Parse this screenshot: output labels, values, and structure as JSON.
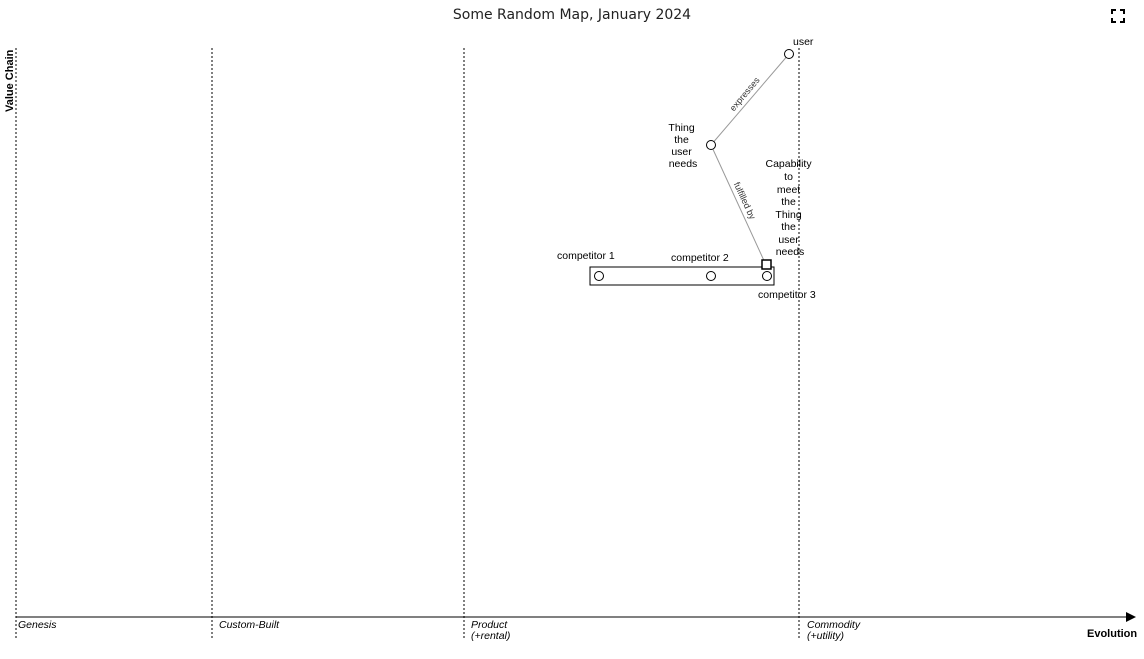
{
  "title": "Some Random Map, January 2024",
  "fullscreen_icon": "fullscreen-icon",
  "axes": {
    "y_label": "Value Chain",
    "x_label": "Evolution"
  },
  "stages": [
    {
      "line1": "Genesis",
      "line2": ""
    },
    {
      "line1": "Custom-Built",
      "line2": ""
    },
    {
      "line1": "Product",
      "line2": "(+rental)"
    },
    {
      "line1": "Commodity",
      "line2": "(+utility)"
    }
  ],
  "components": {
    "user": {
      "label": "user",
      "shape": "circle"
    },
    "thing": {
      "label_lines": [
        "Thing",
        "the",
        "user",
        "needs"
      ],
      "shape": "circle"
    },
    "capability": {
      "label_lines": [
        "Capability",
        "to",
        "meet",
        "the",
        "Thing",
        "the",
        "user",
        "needs"
      ],
      "shape": "square"
    },
    "competitor1": {
      "label": "competitor 1",
      "shape": "circle"
    },
    "competitor2": {
      "label": "competitor 2",
      "shape": "circle"
    },
    "competitor3": {
      "label": "competitor 3",
      "shape": "circle"
    }
  },
  "links": {
    "user_thing": "expresses",
    "thing_capability": "fulfilled by"
  },
  "colors": {
    "link": "#999999",
    "axis": "#000000"
  }
}
